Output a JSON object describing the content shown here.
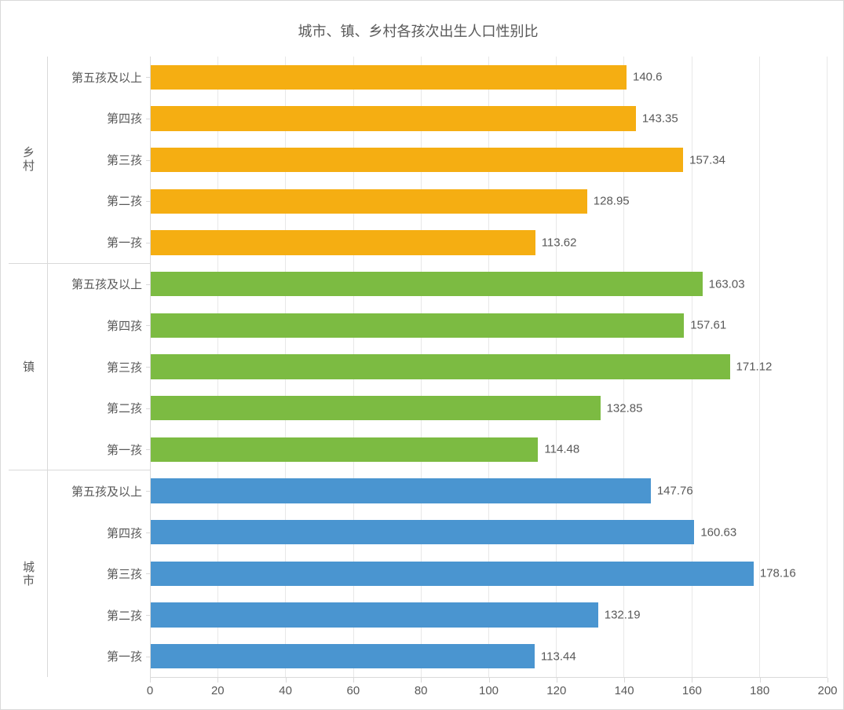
{
  "chart": {
    "type": "horizontal-bar-grouped",
    "title": "城市、镇、乡村各孩次出生人口性别比",
    "title_fontsize": 18,
    "title_color": "#595959",
    "label_fontsize": 15,
    "label_color": "#595959",
    "background_color": "#ffffff",
    "border_color": "#d9d9d9",
    "grid_color": "#e8e8e8",
    "bar_height_ratio": 0.6,
    "xlim": [
      0,
      200
    ],
    "xtick_step": 20,
    "xticks": [
      "0",
      "20",
      "40",
      "60",
      "80",
      "100",
      "120",
      "140",
      "160",
      "180",
      "200"
    ],
    "groups": [
      {
        "name": "乡村",
        "color": "#f5ae12",
        "items": [
          {
            "label": "第五孩及以上",
            "value": 140.6,
            "value_label": "140.6"
          },
          {
            "label": "第四孩",
            "value": 143.35,
            "value_label": "143.35"
          },
          {
            "label": "第三孩",
            "value": 157.34,
            "value_label": "157.34"
          },
          {
            "label": "第二孩",
            "value": 128.95,
            "value_label": "128.95"
          },
          {
            "label": "第一孩",
            "value": 113.62,
            "value_label": "113.62"
          }
        ]
      },
      {
        "name": "镇",
        "color": "#7cbb42",
        "items": [
          {
            "label": "第五孩及以上",
            "value": 163.03,
            "value_label": "163.03"
          },
          {
            "label": "第四孩",
            "value": 157.61,
            "value_label": "157.61"
          },
          {
            "label": "第三孩",
            "value": 171.12,
            "value_label": "171.12"
          },
          {
            "label": "第二孩",
            "value": 132.85,
            "value_label": "132.85"
          },
          {
            "label": "第一孩",
            "value": 114.48,
            "value_label": "114.48"
          }
        ]
      },
      {
        "name": "城市",
        "color": "#4a95d0",
        "items": [
          {
            "label": "第五孩及以上",
            "value": 147.76,
            "value_label": "147.76"
          },
          {
            "label": "第四孩",
            "value": 160.63,
            "value_label": "160.63"
          },
          {
            "label": "第三孩",
            "value": 178.16,
            "value_label": "178.16"
          },
          {
            "label": "第二孩",
            "value": 132.19,
            "value_label": "132.19"
          },
          {
            "label": "第一孩",
            "value": 113.44,
            "value_label": "113.44"
          }
        ]
      }
    ]
  }
}
